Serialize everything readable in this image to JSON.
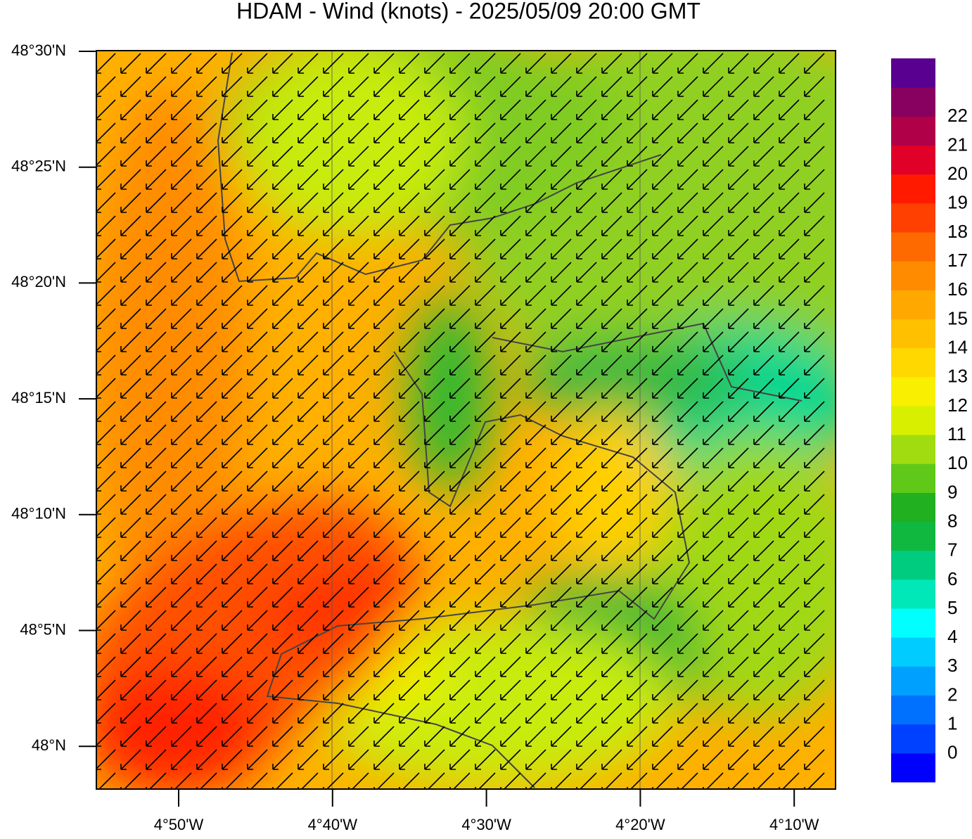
{
  "header": {
    "title": "HDAM - Wind (knots)  -  2025/05/09  20:00 GMT"
  },
  "map": {
    "y_ticks": [
      "48°30'N",
      "48°25'N",
      "48°20'N",
      "48°15'N",
      "48°10'N",
      "48°5'N",
      "48°N"
    ],
    "x_ticks": [
      "4°50'W",
      "4°40'W",
      "4°30'W",
      "4°20'W",
      "4°10'W"
    ]
  },
  "colorbar": {
    "levels": [
      0,
      1,
      2,
      3,
      4,
      5,
      6,
      7,
      8,
      9,
      10,
      11,
      12,
      13,
      14,
      15,
      16,
      17,
      18,
      19,
      20,
      21,
      22
    ],
    "colors": [
      "#0000ff",
      "#0040ff",
      "#0070ff",
      "#00a0ff",
      "#00ccff",
      "#00ffff",
      "#00e8b8",
      "#00cc80",
      "#10b840",
      "#20b020",
      "#60c818",
      "#a0dc10",
      "#d8f000",
      "#f8f000",
      "#ffd800",
      "#ffc000",
      "#ffa800",
      "#ff8c00",
      "#ff6a00",
      "#ff4000",
      "#ff1a00",
      "#e00028",
      "#b00048",
      "#880060",
      "#5a0090"
    ]
  }
}
